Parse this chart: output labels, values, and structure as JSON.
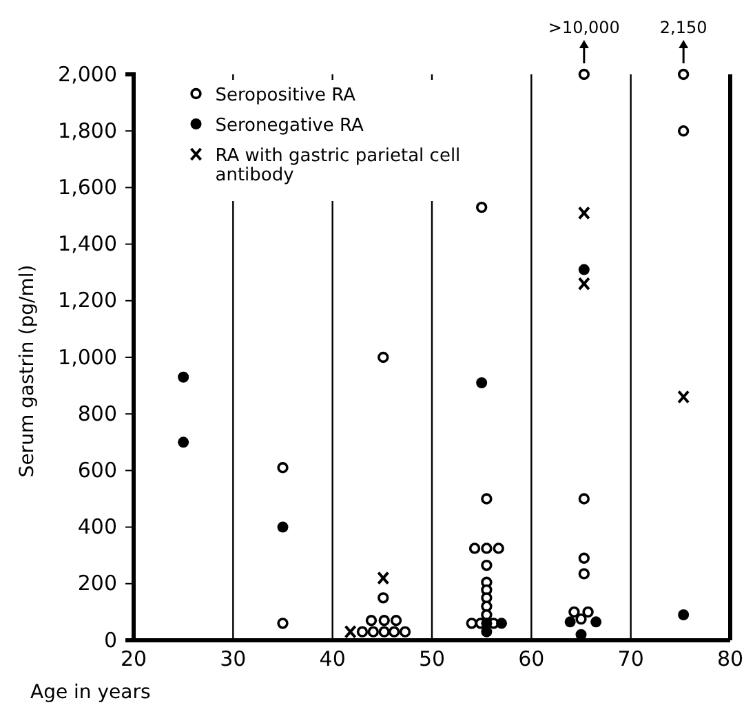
{
  "chart_data": {
    "type": "scatter",
    "xlabel": "Age in years",
    "ylabel": "Serum gastrin (pg/ml)",
    "xlim": [
      20,
      80
    ],
    "xticks": [
      20,
      30,
      40,
      50,
      60,
      70,
      80
    ],
    "ylim": [
      0,
      2000
    ],
    "yticks": [
      0,
      200,
      400,
      600,
      800,
      {
        "value": 1000,
        "label": "1,000"
      },
      {
        "value": 1200,
        "label": "1,200"
      },
      {
        "value": 1400,
        "label": "1,400"
      },
      {
        "value": 1600,
        "label": "1,600"
      },
      {
        "value": 1800,
        "label": "1,800"
      },
      {
        "value": 2000,
        "label": "2,000"
      }
    ],
    "legend": "top left",
    "grid": false,
    "ref_lines": [
      {
        "axis": "x",
        "value": 30
      },
      {
        "axis": "x",
        "value": 40
      },
      {
        "axis": "x",
        "value": 50
      },
      {
        "axis": "x",
        "value": 60
      },
      {
        "axis": "x",
        "value": 70
      }
    ],
    "annotations": [
      {
        "text": ">10,000",
        "x": 65.3,
        "y": 2000
      },
      {
        "text": "2,150",
        "x": 75.3,
        "y": 2000
      }
    ],
    "series": [
      {
        "name": "Seropositive RA",
        "color": "#000000",
        "marker": "circle-open",
        "x": [
          35,
          35,
          45.1,
          45.1,
          43.9,
          45.2,
          46.4,
          43,
          44.1,
          45.2,
          46.2,
          47.3,
          55,
          55.5,
          54.3,
          55.5,
          56.7,
          55.5,
          55.5,
          55.5,
          55.5,
          55.5,
          55.5,
          54,
          54.9,
          56.2,
          65.3,
          65.3,
          65.3,
          65.3,
          64.3,
          65.7,
          65,
          75.3,
          75.3
        ],
        "values": [
          610,
          60,
          1000,
          150,
          70,
          70,
          70,
          30,
          30,
          30,
          30,
          30,
          1530,
          500,
          325,
          325,
          325,
          265,
          205,
          178,
          150,
          120,
          90,
          60,
          60,
          60,
          2000,
          500,
          290,
          235,
          100,
          100,
          75,
          2000,
          1800
        ]
      },
      {
        "name": "Seronegative RA",
        "color": "#000000",
        "marker": "circle",
        "x": [
          25,
          25,
          35,
          55,
          55.5,
          57,
          55.5,
          65.3,
          63.9,
          66.5,
          65,
          75.3
        ],
        "values": [
          930,
          700,
          400,
          910,
          60,
          60,
          30,
          1310,
          65,
          65,
          20,
          90
        ]
      },
      {
        "name": "RA with gastric parietal cell antibody",
        "color": "#000000",
        "marker": "cross",
        "x": [
          41.8,
          45.1,
          65.3,
          65.3,
          75.3
        ],
        "values": [
          30,
          220,
          1510,
          1260,
          860
        ]
      }
    ]
  }
}
